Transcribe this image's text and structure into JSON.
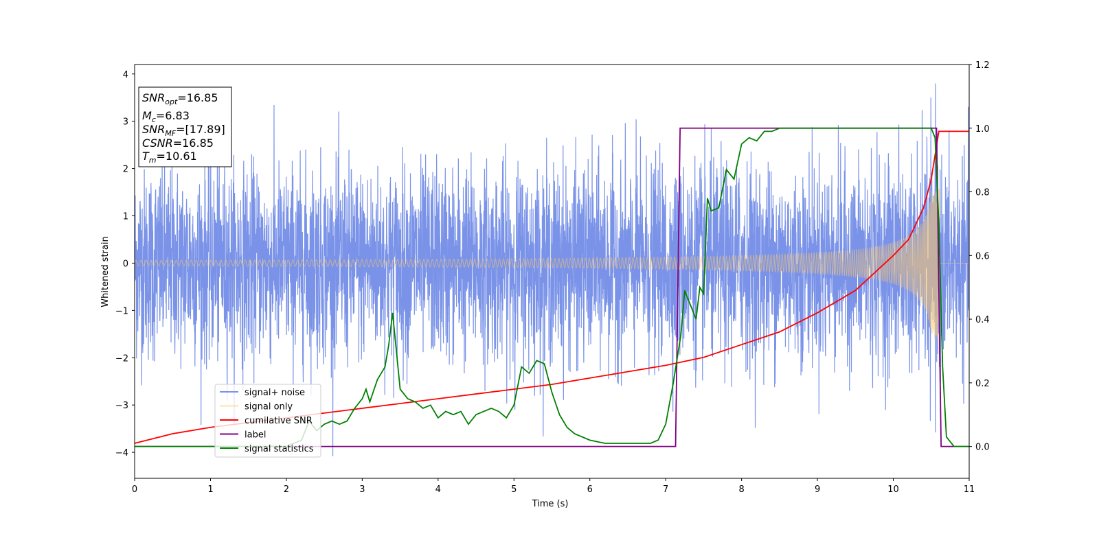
{
  "chart_data": {
    "type": "line",
    "title": "",
    "xlabel": "Time (s)",
    "ylabel": "Whitened strain",
    "xlim": [
      0,
      11
    ],
    "ylim_left": [
      -4.55,
      4.2
    ],
    "ylim_right": [
      -0.1,
      1.2
    ],
    "x_ticks": [
      "0",
      "1",
      "2",
      "3",
      "4",
      "5",
      "6",
      "7",
      "8",
      "9",
      "10",
      "11"
    ],
    "y_left_ticks": [
      "4",
      "3",
      "2",
      "1",
      "0",
      "−1",
      "−2",
      "−3",
      "−4"
    ],
    "y_right_ticks": [
      "1.2",
      "1.0",
      "0.8",
      "0.6",
      "0.4",
      "0.2",
      "0.0"
    ],
    "legend_position": "lower-left",
    "annotation": {
      "snr_opt": {
        "sym": "SNR",
        "sub": "opt",
        "val": "=16.85"
      },
      "mc": {
        "sym": "M",
        "sub": "c",
        "val": "=6.83"
      },
      "snr_mf": {
        "sym": "SNR",
        "sub": "MF",
        "val": "=[17.89]"
      },
      "csnr": {
        "sym": "CSNR",
        "sub": "",
        "val": "=16.85"
      },
      "tm": {
        "sym": "T",
        "sub": "m",
        "val": "=10.61"
      }
    },
    "series": [
      {
        "name": "signal+ noise",
        "color": "#6b87e6",
        "axis": "left",
        "description": "noise-dominated whitened strain, approx. Gaussian, std ~1, extremes near +3.8 and -4.15"
      },
      {
        "name": "signal only",
        "color": "#ffc86a",
        "axis": "left",
        "chirp": {
          "t_merge": 10.61,
          "amp_start": 0.06,
          "amp_peak": 1.6
        }
      },
      {
        "name": "cumilative SNR",
        "color": "#ff0000",
        "axis": "right",
        "x": [
          0,
          0.5,
          1,
          1.5,
          2,
          2.5,
          3,
          3.5,
          4,
          4.5,
          5,
          5.5,
          6,
          6.5,
          7,
          7.5,
          8,
          8.5,
          9,
          9.5,
          10,
          10.2,
          10.4,
          10.5,
          10.6,
          11
        ],
        "y": [
          0.01,
          0.04,
          0.06,
          0.075,
          0.09,
          0.105,
          0.12,
          0.135,
          0.15,
          0.165,
          0.18,
          0.195,
          0.215,
          0.235,
          0.255,
          0.28,
          0.32,
          0.36,
          0.42,
          0.49,
          0.6,
          0.65,
          0.75,
          0.84,
          0.99,
          0.99
        ]
      },
      {
        "name": "label",
        "color": "#800080",
        "axis": "right",
        "x": [
          0,
          7.13,
          7.19,
          10.57,
          10.63,
          11
        ],
        "y": [
          0.0,
          0.0,
          1.0,
          1.0,
          0.0,
          0.0
        ]
      },
      {
        "name": "signal statistics",
        "color": "#008000",
        "axis": "right",
        "x": [
          0,
          1,
          2,
          2.2,
          2.3,
          2.4,
          2.5,
          2.6,
          2.7,
          2.8,
          2.9,
          3.0,
          3.05,
          3.1,
          3.2,
          3.3,
          3.35,
          3.4,
          3.45,
          3.5,
          3.6,
          3.7,
          3.8,
          3.9,
          4.0,
          4.1,
          4.2,
          4.3,
          4.4,
          4.5,
          4.6,
          4.7,
          4.8,
          4.9,
          5.0,
          5.1,
          5.2,
          5.3,
          5.4,
          5.5,
          5.6,
          5.7,
          5.8,
          6.0,
          6.2,
          6.5,
          6.8,
          6.9,
          7.0,
          7.1,
          7.2,
          7.25,
          7.3,
          7.4,
          7.45,
          7.5,
          7.55,
          7.6,
          7.7,
          7.8,
          7.9,
          8.0,
          8.1,
          8.2,
          8.3,
          8.4,
          8.5,
          8.7,
          9.0,
          9.5,
          10.0,
          10.4,
          10.5,
          10.55,
          10.6,
          10.65,
          10.7,
          10.8,
          11.0
        ],
        "y": [
          0.0,
          0.0,
          0.0,
          0.02,
          0.08,
          0.05,
          0.07,
          0.08,
          0.07,
          0.08,
          0.12,
          0.15,
          0.18,
          0.14,
          0.21,
          0.25,
          0.32,
          0.42,
          0.3,
          0.18,
          0.15,
          0.14,
          0.12,
          0.13,
          0.09,
          0.11,
          0.1,
          0.11,
          0.07,
          0.1,
          0.11,
          0.12,
          0.11,
          0.09,
          0.13,
          0.25,
          0.23,
          0.27,
          0.26,
          0.17,
          0.1,
          0.06,
          0.04,
          0.02,
          0.01,
          0.01,
          0.01,
          0.02,
          0.07,
          0.2,
          0.35,
          0.49,
          0.46,
          0.4,
          0.5,
          0.48,
          0.78,
          0.74,
          0.75,
          0.87,
          0.84,
          0.95,
          0.97,
          0.96,
          0.99,
          0.99,
          1.0,
          1.0,
          1.0,
          1.0,
          1.0,
          1.0,
          1.0,
          0.97,
          0.7,
          0.25,
          0.03,
          0.0,
          0.0
        ]
      }
    ]
  }
}
